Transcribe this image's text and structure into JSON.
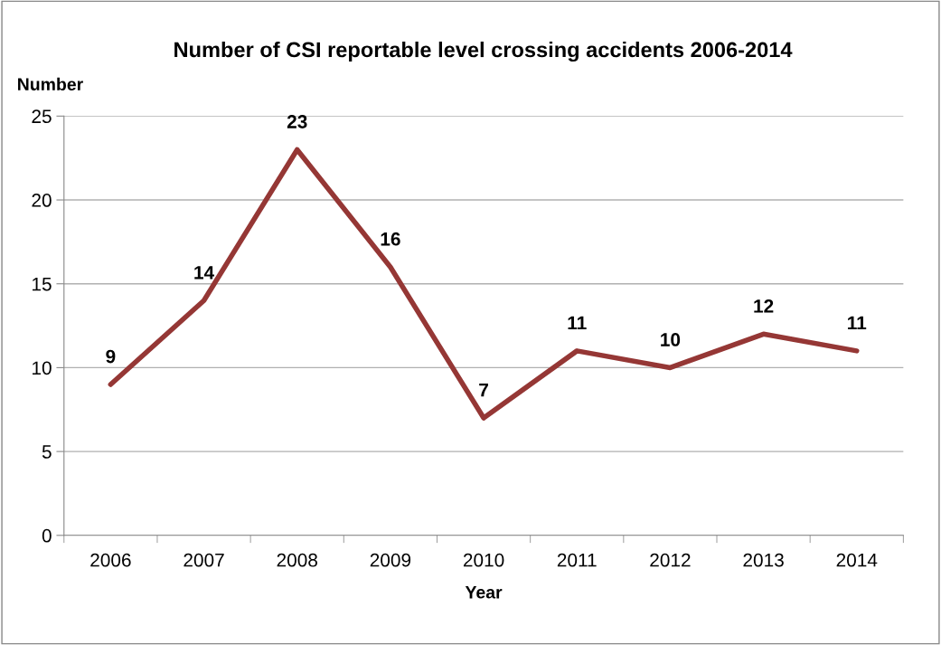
{
  "chart_data": {
    "type": "line",
    "title": "Number of CSI reportable level crossing accidents 2006-2014",
    "xlabel": "Year",
    "ylabel": "Number",
    "categories": [
      "2006",
      "2007",
      "2008",
      "2009",
      "2010",
      "2011",
      "2012",
      "2013",
      "2014"
    ],
    "series": [
      {
        "color": "#953735",
        "values": [
          9,
          14,
          23,
          16,
          7,
          11,
          10,
          12,
          11
        ]
      }
    ],
    "ylim": [
      0,
      25
    ],
    "yticks": [
      0,
      5,
      10,
      15,
      20,
      25
    ],
    "grid": "y",
    "data_labels": true,
    "marker": "none",
    "line_style": "solid"
  }
}
